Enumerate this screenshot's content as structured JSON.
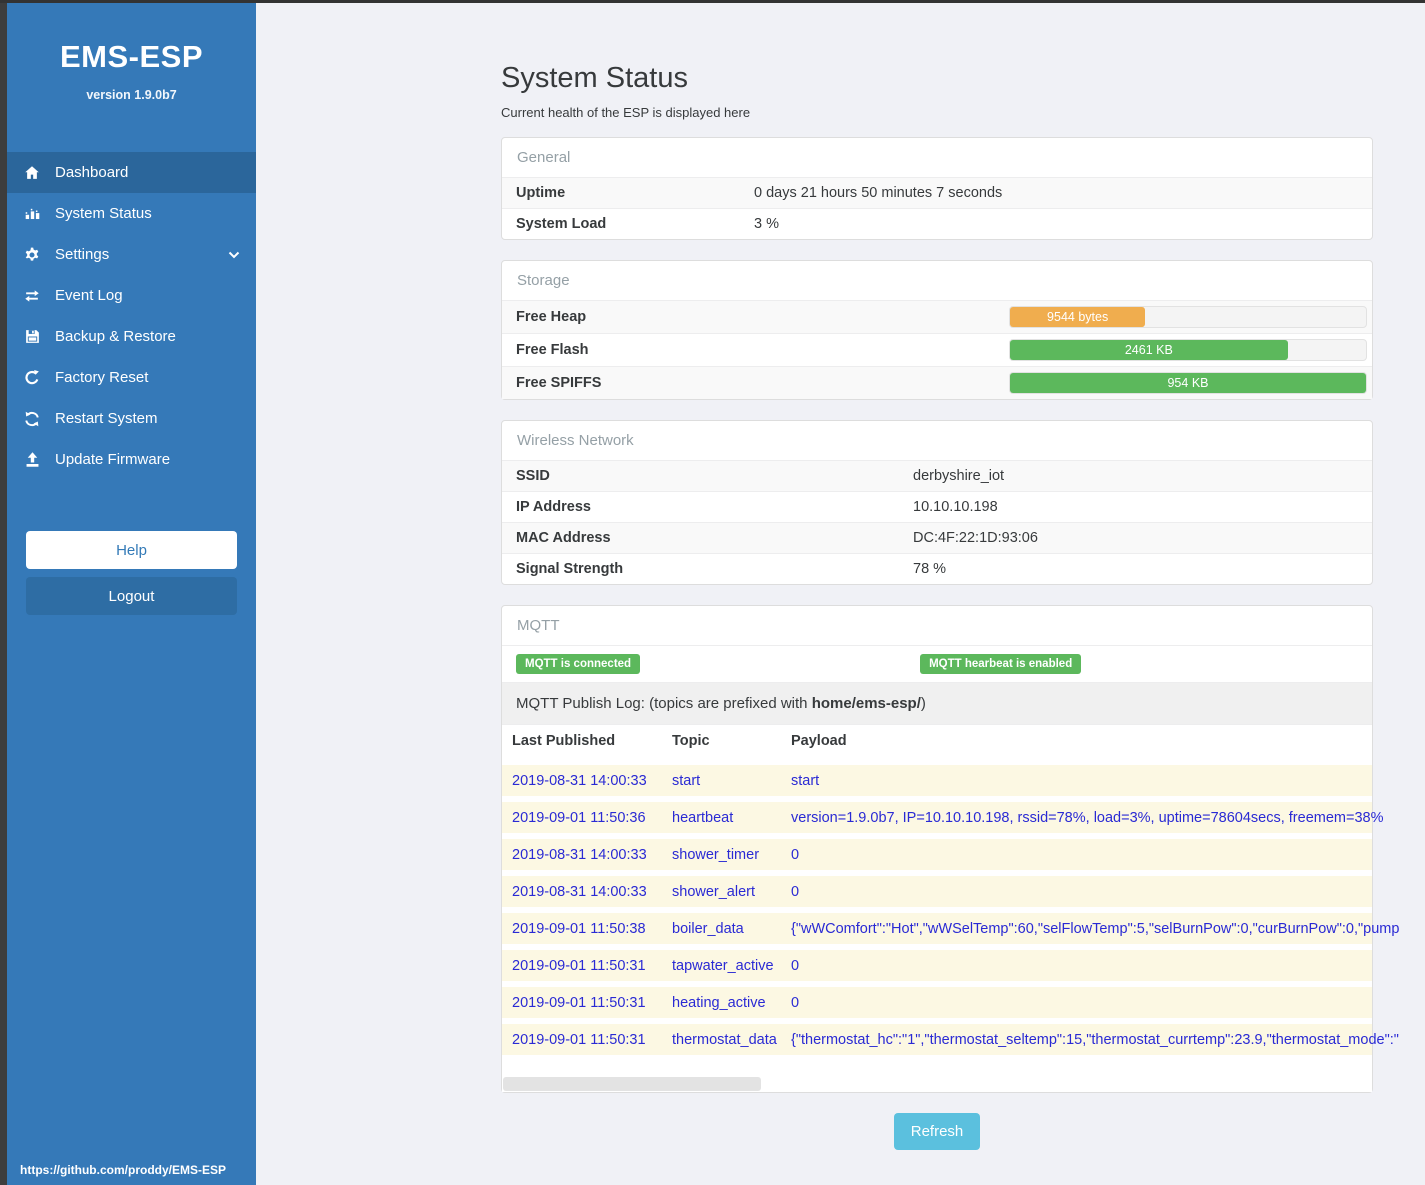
{
  "app": {
    "title": "EMS-ESP",
    "version": "version 1.9.0b7",
    "footer_link": "https://github.com/proddy/EMS-ESP"
  },
  "sidebar": {
    "items": [
      {
        "label": "Dashboard",
        "icon": "home-icon",
        "active": true,
        "chevron": false
      },
      {
        "label": "System Status",
        "icon": "chart-icon",
        "active": false,
        "chevron": false
      },
      {
        "label": "Settings",
        "icon": "gear-icon",
        "active": false,
        "chevron": true
      },
      {
        "label": "Event Log",
        "icon": "exchange-icon",
        "active": false,
        "chevron": false
      },
      {
        "label": "Backup & Restore",
        "icon": "save-icon",
        "active": false,
        "chevron": false
      },
      {
        "label": "Factory Reset",
        "icon": "repeat-icon",
        "active": false,
        "chevron": false
      },
      {
        "label": "Restart System",
        "icon": "refresh-icon",
        "active": false,
        "chevron": false
      },
      {
        "label": "Update Firmware",
        "icon": "upload-icon",
        "active": false,
        "chevron": false
      }
    ],
    "help_label": "Help",
    "logout_label": "Logout"
  },
  "page": {
    "title": "System Status",
    "subtitle": "Current health of the ESP is displayed here",
    "refresh_label": "Refresh"
  },
  "panels": {
    "general": {
      "title": "General",
      "label_width": 238,
      "rows": [
        {
          "label": "Uptime",
          "value": "0 days 21 hours 50 minutes 7 seconds"
        },
        {
          "label": "System Load",
          "value": "3 %"
        }
      ]
    },
    "storage": {
      "title": "Storage",
      "label_width": 493,
      "rows": [
        {
          "label": "Free Heap",
          "bar_label": "9544 bytes",
          "percent": 38,
          "color": "#f0ad4e"
        },
        {
          "label": "Free Flash",
          "bar_label": "2461 KB",
          "percent": 78,
          "color": "#5cb85c"
        },
        {
          "label": "Free SPIFFS",
          "bar_label": "954 KB",
          "percent": 100,
          "color": "#5cb85c"
        }
      ]
    },
    "wireless": {
      "title": "Wireless Network",
      "label_width": 397,
      "rows": [
        {
          "label": "SSID",
          "value": "derbyshire_iot"
        },
        {
          "label": "IP Address",
          "value": "10.10.10.198"
        },
        {
          "label": "MAC Address",
          "value": "DC:4F:22:1D:93:06"
        },
        {
          "label": "Signal Strength",
          "value": "78 %"
        }
      ]
    },
    "mqtt": {
      "title": "MQTT",
      "badges": [
        "MQTT is connected",
        "MQTT hearbeat is enabled"
      ],
      "publish_log": {
        "prefix": "MQTT Publish Log: (topics are prefixed with ",
        "bold": "home/ems-esp/",
        "suffix": ")"
      },
      "table": {
        "headers": [
          "Last Published",
          "Topic",
          "Payload"
        ],
        "rows": [
          {
            "last_published": "2019-08-31 14:00:33",
            "topic": "start",
            "payload": "start"
          },
          {
            "last_published": "2019-09-01 11:50:36",
            "topic": "heartbeat",
            "payload": "version=1.9.0b7, IP=10.10.10.198, rssid=78%, load=3%, uptime=78604secs, freemem=38%"
          },
          {
            "last_published": "2019-08-31 14:00:33",
            "topic": "shower_timer",
            "payload": "0"
          },
          {
            "last_published": "2019-08-31 14:00:33",
            "topic": "shower_alert",
            "payload": "0"
          },
          {
            "last_published": "2019-09-01 11:50:38",
            "topic": "boiler_data",
            "payload": "{\"wWComfort\":\"Hot\",\"wWSelTemp\":60,\"selFlowTemp\":5,\"selBurnPow\":0,\"curBurnPow\":0,\"pump"
          },
          {
            "last_published": "2019-09-01 11:50:31",
            "topic": "tapwater_active",
            "payload": "0"
          },
          {
            "last_published": "2019-09-01 11:50:31",
            "topic": "heating_active",
            "payload": "0"
          },
          {
            "last_published": "2019-09-01 11:50:31",
            "topic": "thermostat_data",
            "payload": "{\"thermostat_hc\":\"1\",\"thermostat_seltemp\":15,\"thermostat_currtemp\":23.9,\"thermostat_mode\":\""
          }
        ]
      }
    }
  },
  "colors": {
    "sidebar_blue": "#3579b8",
    "sidebar_active": "#2b669b",
    "success_green": "#5cb85c",
    "warning_orange": "#f0ad4e",
    "info_blue": "#5bc0de",
    "log_text_blue": "#2a2ad4",
    "log_row_cream": "#fcf8e3"
  }
}
